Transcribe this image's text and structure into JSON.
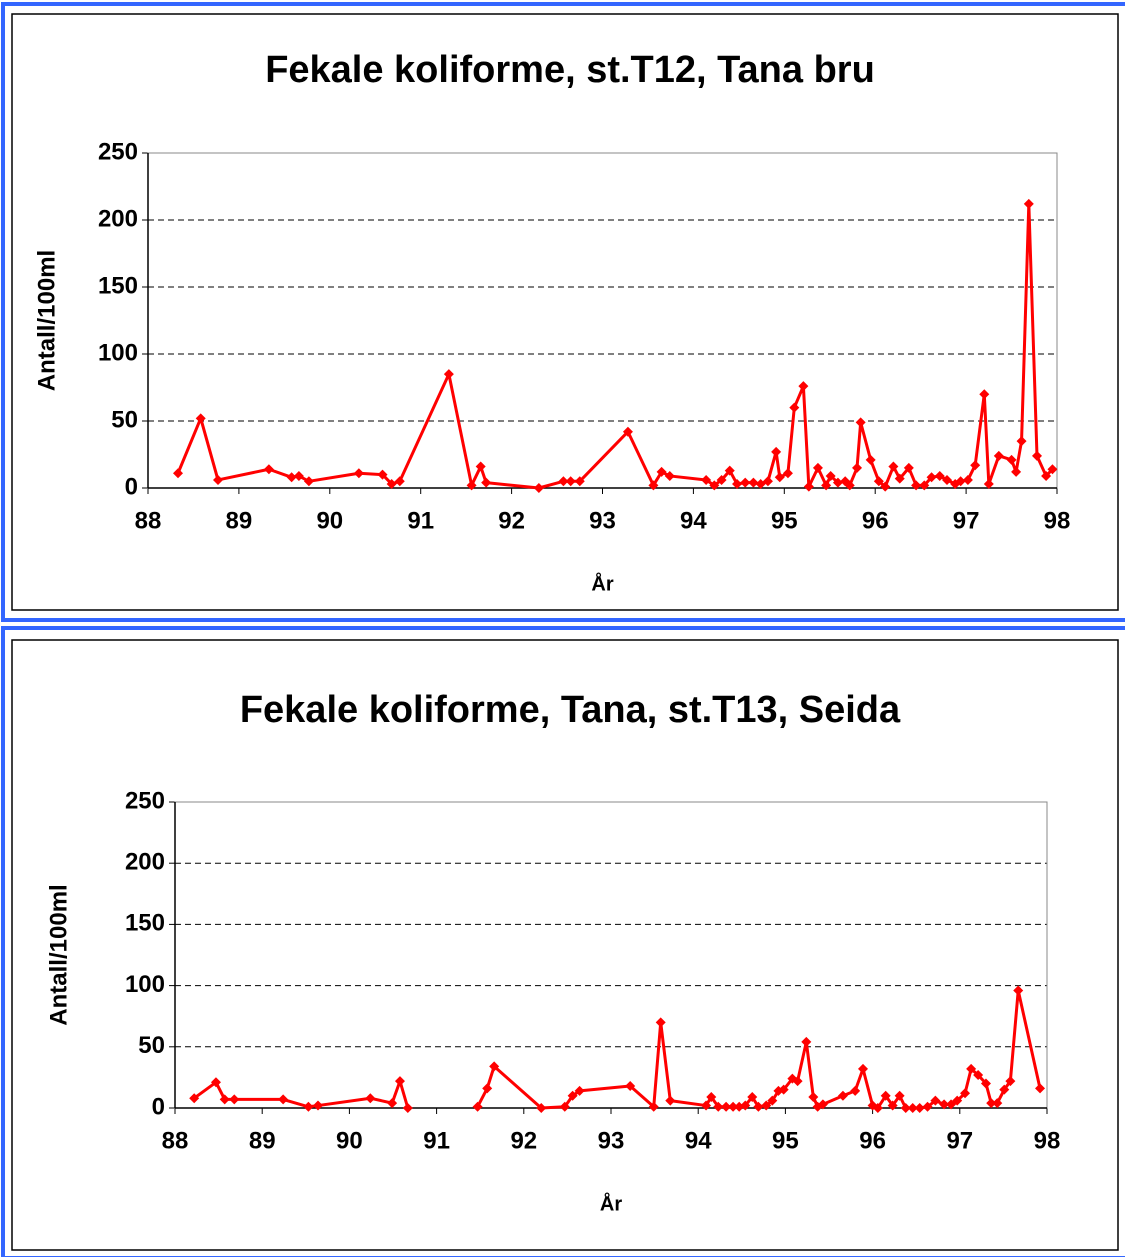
{
  "chart_data": [
    {
      "type": "line",
      "title": "Fekale koliforme, st.T12, Tana bru",
      "xlabel": "År",
      "ylabel": "Antall/100ml",
      "xlim": [
        88,
        98
      ],
      "xticks": [
        88,
        89,
        90,
        91,
        92,
        93,
        94,
        95,
        96,
        97,
        98
      ],
      "ylim": [
        0,
        250
      ],
      "yticks": [
        0,
        50,
        100,
        150,
        200,
        250
      ],
      "grid": true,
      "series": [
        {
          "name": "T12",
          "color": "#ff0000",
          "x": [
            88.33,
            88.58,
            88.77,
            89.33,
            89.58,
            89.66,
            89.77,
            90.32,
            90.58,
            90.68,
            90.77,
            91.31,
            91.56,
            91.66,
            91.72,
            92.3,
            92.57,
            92.65,
            92.75,
            93.28,
            93.56,
            93.65,
            93.74,
            94.14,
            94.23,
            94.31,
            94.4,
            94.48,
            94.57,
            94.66,
            94.74,
            94.82,
            94.91,
            94.95,
            95.04,
            95.11,
            95.21,
            95.27,
            95.37,
            95.46,
            95.51,
            95.59,
            95.67,
            95.72,
            95.8,
            95.84,
            95.95,
            96.04,
            96.11,
            96.2,
            96.27,
            96.37,
            96.45,
            96.54,
            96.62,
            96.71,
            96.79,
            96.88,
            96.94,
            97.02,
            97.1,
            97.2,
            97.25,
            97.36,
            97.5,
            97.55,
            97.61,
            97.69,
            97.78,
            97.88,
            97.95
          ],
          "values": [
            11,
            52,
            6,
            14,
            8,
            9,
            5,
            11,
            10,
            3,
            5,
            85,
            2,
            16,
            4,
            0,
            5,
            5,
            5,
            42,
            2,
            12,
            9,
            6,
            2,
            6,
            13,
            3,
            4,
            4,
            3,
            5,
            27,
            8,
            11,
            60,
            76,
            1,
            15,
            2,
            9,
            4,
            5,
            2,
            15,
            49,
            21,
            5,
            1,
            16,
            7,
            15,
            2,
            2,
            8,
            9,
            6,
            3,
            5,
            6,
            17,
            70,
            3,
            24,
            21,
            12,
            35,
            212,
            24,
            9,
            14
          ]
        }
      ]
    },
    {
      "type": "line",
      "title": "Fekale koliforme, Tana, st.T13, Seida",
      "xlabel": "År",
      "ylabel": "Antall/100ml",
      "xlim": [
        88,
        98
      ],
      "xticks": [
        88,
        89,
        90,
        91,
        92,
        93,
        94,
        95,
        96,
        97,
        98
      ],
      "ylim": [
        0,
        250
      ],
      "yticks": [
        0,
        50,
        100,
        150,
        200,
        250
      ],
      "grid": true,
      "series": [
        {
          "name": "T13",
          "color": "#ff0000",
          "x": [
            88.22,
            88.47,
            88.57,
            88.68,
            89.24,
            89.53,
            89.64,
            90.24,
            90.49,
            90.58,
            90.67,
            null,
            91.47,
            91.58,
            91.66,
            92.2,
            92.47,
            92.56,
            92.64,
            93.22,
            93.49,
            93.57,
            93.68,
            94.09,
            94.15,
            94.23,
            94.32,
            94.4,
            94.47,
            94.54,
            94.62,
            94.69,
            94.78,
            94.85,
            94.92,
            94.98,
            95.08,
            95.14,
            95.24,
            95.32,
            95.37,
            95.43,
            95.66,
            95.8,
            95.89,
            96.0,
            96.06,
            96.15,
            96.23,
            96.31,
            96.38,
            96.46,
            96.54,
            96.63,
            96.72,
            96.82,
            96.9,
            96.97,
            97.06,
            97.13,
            97.21,
            97.3,
            97.36,
            97.43,
            97.51,
            97.58,
            97.67,
            97.92
          ],
          "values": [
            8,
            21,
            7,
            7,
            7,
            1,
            2,
            8,
            4,
            22,
            0,
            null,
            1,
            16,
            34,
            0,
            1,
            10,
            14,
            18,
            1,
            70,
            6,
            2,
            9,
            1,
            1,
            1,
            1,
            2,
            9,
            1,
            2,
            6,
            14,
            15,
            24,
            22,
            54,
            9,
            1,
            3,
            10,
            14,
            32,
            2,
            0,
            10,
            2,
            10,
            0,
            0,
            0,
            1,
            6,
            3,
            3,
            6,
            12,
            32,
            27,
            20,
            4,
            4,
            15,
            22,
            96,
            16
          ]
        }
      ]
    }
  ]
}
